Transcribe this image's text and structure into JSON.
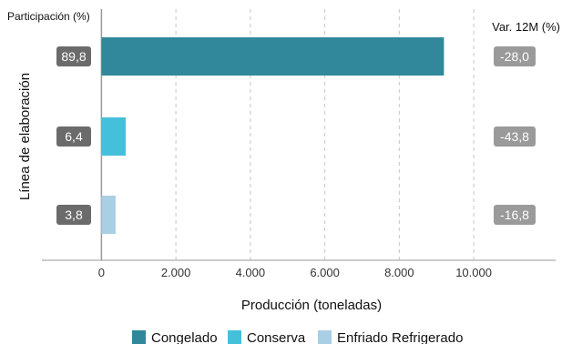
{
  "chart_data": {
    "type": "bar",
    "orientation": "horizontal",
    "categories": [
      "Congelado",
      "Conserva",
      "Enfriado Refrigerado"
    ],
    "values": [
      9200,
      650,
      380
    ],
    "share_label": "Participación (%)",
    "shares": [
      "89,8",
      "6,4",
      "3,8"
    ],
    "var_label": "Var. 12M (%)",
    "variations": [
      "-28,0",
      "-43,8",
      "-16,8"
    ],
    "xlabel": "Producción (toneladas)",
    "ylabel": "Línea de elaboración",
    "xlim": [
      -1600,
      12200
    ],
    "xticks": [
      0,
      2000,
      4000,
      6000,
      8000,
      10000
    ],
    "xtick_labels": [
      "0",
      "2.000",
      "4.000",
      "6.000",
      "8.000",
      "10.000"
    ],
    "colors": [
      "#31889B",
      "#45C0DB",
      "#A9CFE5"
    ],
    "grid": "vertical dashed",
    "legend_position": "bottom",
    "legend": [
      "Congelado",
      "Conserva",
      "Enfriado Refrigerado"
    ]
  }
}
